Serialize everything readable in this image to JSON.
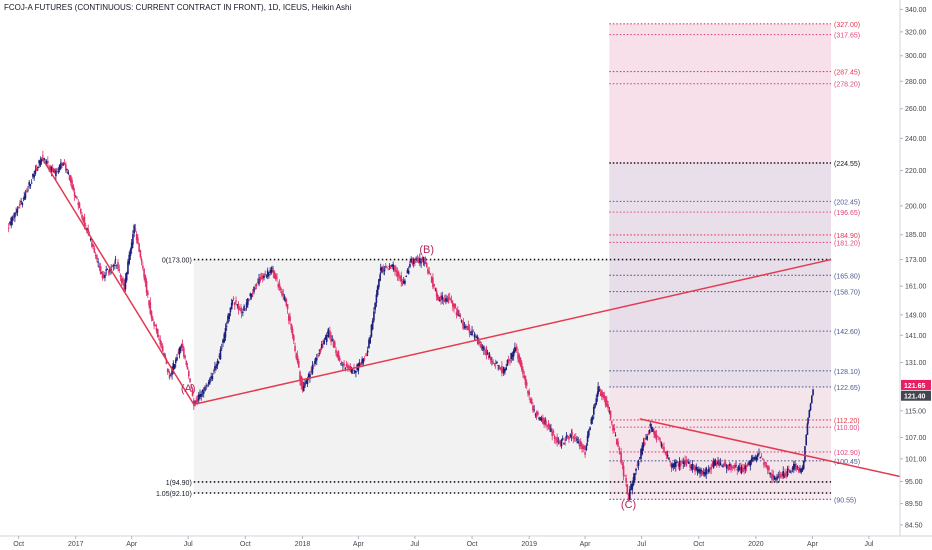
{
  "header": {
    "title": "FCOJ-A FUTURES (CONTINUOUS: CURRENT CONTRACT IN FRONT), 1D, ICEUS, Heikin Ashi"
  },
  "colors": {
    "candle_up": "#1b1e7a",
    "candle_down": "#e0306b",
    "trend_line": "#e53950",
    "fib_black": "#131722",
    "fib_pink": "#e0487f",
    "fib_red": "#e53950",
    "fib_blue": "#4f5b93",
    "zone_grey": "#f2f2f2",
    "zone_pink": "#f6dbe6",
    "zone_purple": "#e6dbe8",
    "price_tag_pink": "#e91e63",
    "price_tag_grey": "#434651",
    "wave_label": "#b2275a"
  },
  "chart_data": {
    "type": "candlestick",
    "series": [
      {
        "name": "Heikin Ashi",
        "anchors": [
          [
            "2016-09-15",
            190.0
          ],
          [
            "2016-10-10",
            205.0
          ],
          [
            "2016-11-07",
            228.0
          ],
          [
            "2016-11-28",
            218.0
          ],
          [
            "2016-12-12",
            226.0
          ],
          [
            "2017-01-09",
            196.0
          ],
          [
            "2017-02-13",
            165.0
          ],
          [
            "2017-03-06",
            172.0
          ],
          [
            "2017-03-20",
            160.0
          ],
          [
            "2017-04-05",
            189.0
          ],
          [
            "2017-05-01",
            150.0
          ],
          [
            "2017-06-01",
            126.0
          ],
          [
            "2017-06-20",
            138.0
          ],
          [
            "2017-07-10",
            117.0
          ],
          [
            "2017-08-01",
            123.0
          ],
          [
            "2017-08-20",
            133.0
          ],
          [
            "2017-09-10",
            155.0
          ],
          [
            "2017-09-25",
            150.0
          ],
          [
            "2017-10-23",
            164.0
          ],
          [
            "2017-11-13",
            168.0
          ],
          [
            "2017-12-04",
            155.0
          ],
          [
            "2018-01-01",
            121.0
          ],
          [
            "2018-01-22",
            132.0
          ],
          [
            "2018-02-12",
            142.0
          ],
          [
            "2018-03-05",
            130.0
          ],
          [
            "2018-03-26",
            128.0
          ],
          [
            "2018-04-16",
            135.0
          ],
          [
            "2018-05-07",
            168.0
          ],
          [
            "2018-05-28",
            170.0
          ],
          [
            "2018-06-11",
            162.0
          ],
          [
            "2018-06-25",
            172.0
          ],
          [
            "2018-07-16",
            173.0
          ],
          [
            "2018-08-06",
            156.0
          ],
          [
            "2018-08-27",
            155.0
          ],
          [
            "2018-09-17",
            145.0
          ],
          [
            "2018-10-08",
            140.0
          ],
          [
            "2018-10-29",
            133.0
          ],
          [
            "2018-11-19",
            128.0
          ],
          [
            "2018-12-10",
            136.0
          ],
          [
            "2019-01-07",
            115.0
          ],
          [
            "2019-01-28",
            111.0
          ],
          [
            "2019-02-18",
            105.0
          ],
          [
            "2019-03-11",
            108.0
          ],
          [
            "2019-04-01",
            103.0
          ],
          [
            "2019-04-22",
            122.0
          ],
          [
            "2019-05-06",
            117.0
          ],
          [
            "2019-05-27",
            102.0
          ],
          [
            "2019-06-10",
            91.0
          ],
          [
            "2019-06-24",
            100.0
          ],
          [
            "2019-07-15",
            110.0
          ],
          [
            "2019-07-29",
            106.0
          ],
          [
            "2019-08-19",
            99.0
          ],
          [
            "2019-09-09",
            100.0
          ],
          [
            "2019-10-07",
            97.0
          ],
          [
            "2019-10-28",
            100.0
          ],
          [
            "2019-11-18",
            99.0
          ],
          [
            "2019-12-09",
            98.0
          ],
          [
            "2020-01-06",
            102.0
          ],
          [
            "2020-01-27",
            96.0
          ],
          [
            "2020-02-17",
            97.0
          ],
          [
            "2020-03-02",
            99.0
          ],
          [
            "2020-03-16",
            98.0
          ],
          [
            "2020-03-25",
            113.0
          ],
          [
            "2020-04-02",
            122.0
          ]
        ]
      }
    ],
    "x_range": [
      "2016-09-01",
      "2020-08-20"
    ],
    "ylim": [
      82,
      345
    ],
    "y_scale": "log",
    "x_ticks": [
      {
        "date": "2016-10-01",
        "label": "Oct"
      },
      {
        "date": "2017-01-01",
        "label": "2017"
      },
      {
        "date": "2017-04-01",
        "label": "Apr"
      },
      {
        "date": "2017-07-01",
        "label": "Jul"
      },
      {
        "date": "2017-10-01",
        "label": "Oct"
      },
      {
        "date": "2018-01-01",
        "label": "2018"
      },
      {
        "date": "2018-04-01",
        "label": "Apr"
      },
      {
        "date": "2018-07-01",
        "label": "Jul"
      },
      {
        "date": "2018-10-01",
        "label": "Oct"
      },
      {
        "date": "2019-01-01",
        "label": "2019"
      },
      {
        "date": "2019-04-01",
        "label": "Apr"
      },
      {
        "date": "2019-07-01",
        "label": "Jul"
      },
      {
        "date": "2019-10-01",
        "label": "Oct"
      },
      {
        "date": "2020-01-01",
        "label": "2020"
      },
      {
        "date": "2020-04-01",
        "label": "Apr"
      },
      {
        "date": "2020-07-01",
        "label": "Jul"
      }
    ],
    "y_ticks": [
      {
        "value": 340.0,
        "label": "340.00"
      },
      {
        "value": 320.0,
        "label": "320.00"
      },
      {
        "value": 300.0,
        "label": "300.00"
      },
      {
        "value": 280.0,
        "label": "280.00"
      },
      {
        "value": 260.0,
        "label": "260.00"
      },
      {
        "value": 240.0,
        "label": "240.00"
      },
      {
        "value": 220.0,
        "label": "220.00"
      },
      {
        "value": 200.0,
        "label": "200.00"
      },
      {
        "value": 185.0,
        "label": "185.00"
      },
      {
        "value": 173.0,
        "label": "173.00"
      },
      {
        "value": 161.0,
        "label": "161.00"
      },
      {
        "value": 149.0,
        "label": "149.00"
      },
      {
        "value": 141.0,
        "label": "141.00"
      },
      {
        "value": 131.0,
        "label": "131.00"
      },
      {
        "value": 115.0,
        "label": "115.00"
      },
      {
        "value": 107.0,
        "label": "107.00"
      },
      {
        "value": 101.0,
        "label": "101.00"
      },
      {
        "value": 95.0,
        "label": "95.00"
      },
      {
        "value": 89.5,
        "label": "89.50"
      },
      {
        "value": 84.5,
        "label": "84.50"
      }
    ],
    "price_tags": [
      {
        "value": 121.65,
        "label": "121.65",
        "color": "#e91e63"
      },
      {
        "value": 121.4,
        "label": "121.40",
        "color": "#434651"
      }
    ],
    "wave_labels": [
      {
        "date": "2017-07-01",
        "value": 121.0,
        "label": "(A)"
      },
      {
        "date": "2018-07-20",
        "value": 176.0,
        "label": "(B)"
      },
      {
        "date": "2019-06-10",
        "value": 88.5,
        "label": "(C)"
      }
    ],
    "trend_lines": [
      {
        "from": [
          "2016-11-07",
          228.0
        ],
        "to": [
          "2017-07-10",
          117.0
        ]
      },
      {
        "from": [
          "2017-07-10",
          117.0
        ],
        "to": [
          "2020-05-01",
          173.0
        ]
      },
      {
        "from": [
          "2019-06-28",
          112.5
        ],
        "to": [
          "2020-08-20",
          96.3
        ]
      }
    ],
    "fib_retracement": {
      "from": "2017-07-10",
      "to": "2020-05-01",
      "levels": [
        {
          "value": 173.0,
          "label": "0(173.00)"
        },
        {
          "value": 94.9,
          "label": "1(94.90)"
        },
        {
          "value": 92.1,
          "label": "1.05(92.10)"
        }
      ]
    },
    "fib_extension": {
      "from": "2019-05-10",
      "to": "2020-05-01",
      "levels": [
        {
          "value": 327.0,
          "label": "(327.00)",
          "color": "#e53950"
        },
        {
          "value": 317.65,
          "label": "(317.65)",
          "color": "#e0487f"
        },
        {
          "value": 287.45,
          "label": "(287.45)",
          "color": "#e53950"
        },
        {
          "value": 278.2,
          "label": "(278.20)",
          "color": "#e0487f"
        },
        {
          "value": 224.55,
          "label": "(224.55)",
          "color": "#131722"
        },
        {
          "value": 202.45,
          "label": "(202.45)",
          "color": "#4f5b93"
        },
        {
          "value": 196.65,
          "label": "(196.65)",
          "color": "#e0487f"
        },
        {
          "value": 184.9,
          "label": "(184.90)",
          "color": "#e53950"
        },
        {
          "value": 181.2,
          "label": "(181.20)",
          "color": "#e0487f"
        },
        {
          "value": 165.8,
          "label": "(165.80)",
          "color": "#4f5b93"
        },
        {
          "value": 158.7,
          "label": "(158.70)",
          "color": "#4f5b93"
        },
        {
          "value": 142.6,
          "label": "(142.60)",
          "color": "#4f5b93"
        },
        {
          "value": 128.1,
          "label": "(128.10)",
          "color": "#4f5b93"
        },
        {
          "value": 122.65,
          "label": "(122.65)",
          "color": "#4f5b93"
        },
        {
          "value": 112.2,
          "label": "(112.20)",
          "color": "#e53950"
        },
        {
          "value": 110.0,
          "label": "(110.00)",
          "color": "#e0487f"
        },
        {
          "value": 102.9,
          "label": "(102.90)",
          "color": "#e0487f"
        },
        {
          "value": 100.45,
          "label": "(100.45)",
          "color": "#4f5b93"
        },
        {
          "value": 90.55,
          "label": "(90.55)",
          "color": "#4f5b93"
        }
      ]
    },
    "grid": false,
    "legend": "none"
  }
}
